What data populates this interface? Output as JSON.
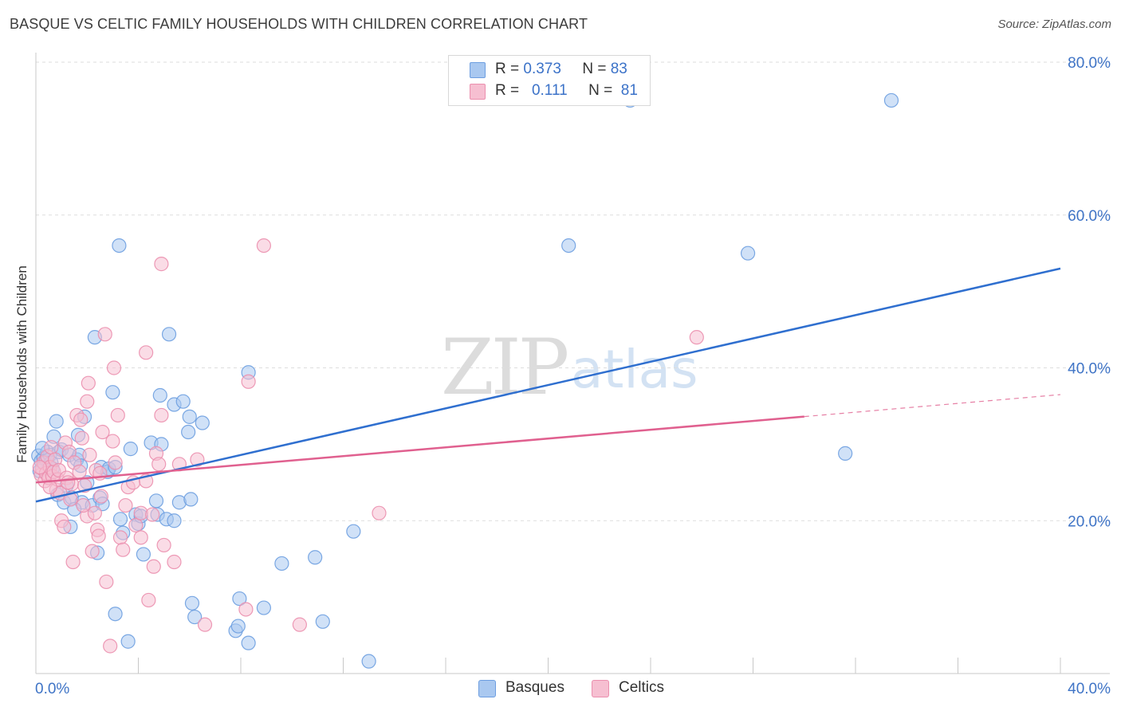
{
  "title": "BASQUE VS CELTIC FAMILY HOUSEHOLDS WITH CHILDREN CORRELATION CHART",
  "source": "Source: ZipAtlas.com",
  "watermark": {
    "zip": "ZIP",
    "atlas": "atlas"
  },
  "colors": {
    "basques_fill": "#a9c8f0",
    "basques_stroke": "#6d9ee0",
    "basques_line": "#2f6fcf",
    "celtics_fill": "#f6bfd1",
    "celtics_stroke": "#eb8fae",
    "celtics_line": "#e0608f",
    "grid": "#dddddd",
    "axis_label": "#3f74c6"
  },
  "legend": {
    "rows": [
      {
        "series": "Basques",
        "r_label": "R =",
        "r_value": "0.373",
        "n_label": "N =",
        "n_value": "83"
      },
      {
        "series": "Celtics",
        "r_label": "R =",
        "r_value": "0.111",
        "n_label": "N =",
        "n_value": "81"
      }
    ]
  },
  "bottom_legend": [
    "Basques",
    "Celtics"
  ],
  "chart_data": {
    "type": "scatter",
    "title": "BASQUE VS CELTIC FAMILY HOUSEHOLDS WITH CHILDREN CORRELATION CHART",
    "xlabel": "",
    "ylabel": "Family Households with Children",
    "xlim": [
      0,
      40
    ],
    "ylim": [
      0,
      80
    ],
    "x_tick_labels": [
      "0.0%",
      "40.0%"
    ],
    "y_tick_labels": [
      "20.0%",
      "40.0%",
      "60.0%",
      "80.0%"
    ],
    "y_ticks": [
      20,
      40,
      60,
      80
    ],
    "legend_placement": "top-center",
    "series": [
      {
        "name": "Basques",
        "r": 0.373,
        "n": 83,
        "trend": {
          "x": [
            0,
            40
          ],
          "y": [
            22.5,
            53.0
          ],
          "dashed_from": null
        },
        "points": [
          [
            0.1,
            28.5
          ],
          [
            0.2,
            27.8
          ],
          [
            0.3,
            28.2
          ],
          [
            0.35,
            27.5
          ],
          [
            0.4,
            28.0
          ],
          [
            0.45,
            29.0
          ],
          [
            0.5,
            27.2
          ],
          [
            0.55,
            28.6
          ],
          [
            0.6,
            27.6
          ],
          [
            0.65,
            26.8
          ],
          [
            0.7,
            31.0
          ],
          [
            0.8,
            33.0
          ],
          [
            0.85,
            23.4
          ],
          [
            0.9,
            29.0
          ],
          [
            1.0,
            29.3
          ],
          [
            1.1,
            22.4
          ],
          [
            1.2,
            24.6
          ],
          [
            1.3,
            28.6
          ],
          [
            1.35,
            19.2
          ],
          [
            1.4,
            23.0
          ],
          [
            1.6,
            28.0
          ],
          [
            1.65,
            31.2
          ],
          [
            1.7,
            28.6
          ],
          [
            1.75,
            27.2
          ],
          [
            1.8,
            22.4
          ],
          [
            1.9,
            33.6
          ],
          [
            2.2,
            22.0
          ],
          [
            2.3,
            44.0
          ],
          [
            2.4,
            15.8
          ],
          [
            2.5,
            23.0
          ],
          [
            2.55,
            27.0
          ],
          [
            2.6,
            22.2
          ],
          [
            2.8,
            26.4
          ],
          [
            2.85,
            26.8
          ],
          [
            3.0,
            36.8
          ],
          [
            3.1,
            27.0
          ],
          [
            3.1,
            7.8
          ],
          [
            3.25,
            56.0
          ],
          [
            3.3,
            20.2
          ],
          [
            3.4,
            18.4
          ],
          [
            3.6,
            4.2
          ],
          [
            3.7,
            29.4
          ],
          [
            3.9,
            20.8
          ],
          [
            4.0,
            19.6
          ],
          [
            4.1,
            20.6
          ],
          [
            4.2,
            15.6
          ],
          [
            4.5,
            30.2
          ],
          [
            4.7,
            22.6
          ],
          [
            4.75,
            20.8
          ],
          [
            4.85,
            36.4
          ],
          [
            4.9,
            30.0
          ],
          [
            5.1,
            20.2
          ],
          [
            5.2,
            44.4
          ],
          [
            5.4,
            20.0
          ],
          [
            5.4,
            35.2
          ],
          [
            5.6,
            22.4
          ],
          [
            5.75,
            35.6
          ],
          [
            5.95,
            31.6
          ],
          [
            6.0,
            33.6
          ],
          [
            6.05,
            22.8
          ],
          [
            6.1,
            9.2
          ],
          [
            6.2,
            7.4
          ],
          [
            6.5,
            32.8
          ],
          [
            7.8,
            5.6
          ],
          [
            7.9,
            6.2
          ],
          [
            7.95,
            9.8
          ],
          [
            8.3,
            4.0
          ],
          [
            8.3,
            39.4
          ],
          [
            8.9,
            8.6
          ],
          [
            9.6,
            14.4
          ],
          [
            10.9,
            15.2
          ],
          [
            11.2,
            6.8
          ],
          [
            12.4,
            18.6
          ],
          [
            13.0,
            1.6
          ],
          [
            20.8,
            56.0
          ],
          [
            23.2,
            75.0
          ],
          [
            27.8,
            55.0
          ],
          [
            31.6,
            28.8
          ],
          [
            33.4,
            75.0
          ],
          [
            0.15,
            26.5
          ],
          [
            0.25,
            29.5
          ],
          [
            2.0,
            25.0
          ],
          [
            1.5,
            21.5
          ]
        ]
      },
      {
        "name": "Celtics",
        "r": 0.111,
        "n": 81,
        "trend": {
          "x": [
            0,
            40
          ],
          "y": [
            25.0,
            36.5
          ],
          "dashed_from": 30.0
        },
        "points": [
          [
            0.2,
            26.0
          ],
          [
            0.25,
            26.8
          ],
          [
            0.3,
            27.6
          ],
          [
            0.35,
            25.2
          ],
          [
            0.4,
            26.2
          ],
          [
            0.45,
            28.4
          ],
          [
            0.5,
            25.6
          ],
          [
            0.55,
            27.0
          ],
          [
            0.6,
            29.6
          ],
          [
            0.65,
            25.8
          ],
          [
            0.7,
            26.4
          ],
          [
            0.75,
            28.0
          ],
          [
            0.8,
            24.0
          ],
          [
            0.85,
            25.4
          ],
          [
            0.9,
            26.6
          ],
          [
            0.95,
            23.6
          ],
          [
            1.0,
            20.0
          ],
          [
            1.1,
            19.2
          ],
          [
            1.15,
            30.2
          ],
          [
            1.2,
            25.6
          ],
          [
            1.3,
            29.0
          ],
          [
            1.35,
            22.8
          ],
          [
            1.4,
            24.8
          ],
          [
            1.45,
            14.6
          ],
          [
            1.5,
            27.6
          ],
          [
            1.6,
            33.8
          ],
          [
            1.7,
            26.4
          ],
          [
            1.75,
            33.2
          ],
          [
            1.8,
            30.8
          ],
          [
            1.9,
            24.6
          ],
          [
            2.0,
            20.6
          ],
          [
            2.0,
            35.6
          ],
          [
            2.05,
            38.0
          ],
          [
            2.1,
            28.6
          ],
          [
            2.2,
            16.0
          ],
          [
            2.3,
            21.0
          ],
          [
            2.35,
            26.6
          ],
          [
            2.4,
            18.8
          ],
          [
            2.45,
            18.0
          ],
          [
            2.5,
            26.2
          ],
          [
            2.6,
            31.6
          ],
          [
            2.7,
            44.4
          ],
          [
            2.9,
            3.6
          ],
          [
            3.0,
            30.4
          ],
          [
            3.05,
            40.0
          ],
          [
            3.1,
            27.6
          ],
          [
            3.2,
            33.8
          ],
          [
            3.3,
            17.8
          ],
          [
            3.4,
            16.2
          ],
          [
            3.6,
            24.4
          ],
          [
            3.8,
            25.0
          ],
          [
            3.9,
            19.4
          ],
          [
            4.1,
            17.8
          ],
          [
            4.1,
            21.0
          ],
          [
            4.3,
            25.2
          ],
          [
            4.3,
            42.0
          ],
          [
            4.4,
            9.6
          ],
          [
            4.6,
            14.0
          ],
          [
            4.7,
            28.8
          ],
          [
            4.8,
            27.4
          ],
          [
            4.9,
            33.8
          ],
          [
            4.9,
            53.6
          ],
          [
            5.0,
            16.8
          ],
          [
            5.4,
            14.6
          ],
          [
            5.6,
            27.4
          ],
          [
            6.3,
            28.0
          ],
          [
            6.6,
            6.4
          ],
          [
            8.2,
            8.4
          ],
          [
            8.3,
            38.2
          ],
          [
            8.9,
            56.0
          ],
          [
            10.3,
            6.4
          ],
          [
            13.4,
            21.0
          ],
          [
            25.8,
            44.0
          ],
          [
            0.15,
            27.0
          ],
          [
            1.25,
            25.0
          ],
          [
            2.55,
            23.2
          ],
          [
            3.5,
            22.0
          ],
          [
            1.85,
            22.0
          ],
          [
            0.55,
            24.4
          ],
          [
            2.75,
            12.0
          ],
          [
            4.55,
            20.8
          ]
        ]
      }
    ]
  }
}
